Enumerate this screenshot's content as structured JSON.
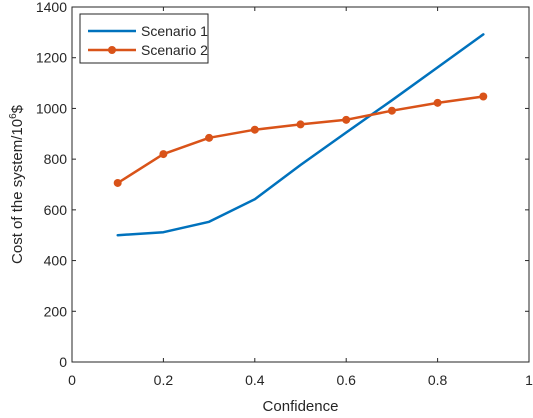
{
  "chart_data": {
    "type": "line",
    "xlabel": "Confidence",
    "ylabel": "Cost of the system/10",
    "ylabel_sup": "6",
    "ylabel_suffix": "$",
    "xlim": [
      0,
      1
    ],
    "ylim": [
      0,
      1400
    ],
    "xticks": [
      0,
      0.2,
      0.4,
      0.6,
      0.8,
      1
    ],
    "xtick_labels": [
      "0",
      "0.2",
      "0.4",
      "0.6",
      "0.8",
      "1"
    ],
    "yticks": [
      0,
      200,
      400,
      600,
      800,
      1000,
      1200,
      1400
    ],
    "ytick_labels": [
      "0",
      "200",
      "400",
      "600",
      "800",
      "1000",
      "1200",
      "1400"
    ],
    "grid": false,
    "legend_position": "top-left",
    "series": [
      {
        "name": "Scenario 1",
        "color": "#0072BD",
        "marker": "none",
        "x": [
          0.1,
          0.2,
          0.3,
          0.4,
          0.5,
          0.6,
          0.7,
          0.8,
          0.9
        ],
        "y": [
          500,
          512,
          553,
          642,
          777,
          905,
          1032,
          1162,
          1292
        ]
      },
      {
        "name": "Scenario 2",
        "color": "#D95319",
        "marker": "circle",
        "x": [
          0.1,
          0.2,
          0.3,
          0.4,
          0.5,
          0.6,
          0.7,
          0.8,
          0.9
        ],
        "y": [
          706,
          820,
          884,
          916,
          937,
          955,
          991,
          1022,
          1047
        ]
      }
    ]
  }
}
